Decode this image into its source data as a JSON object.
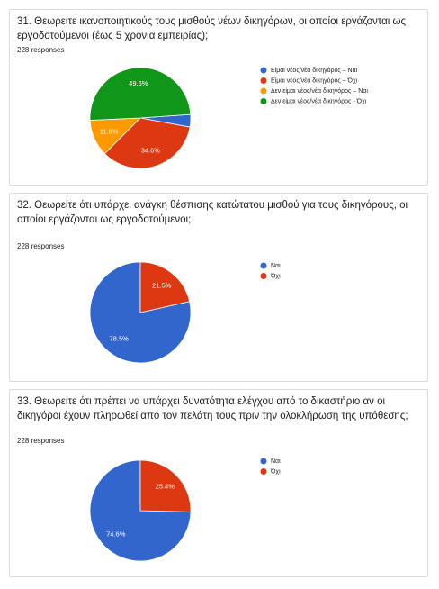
{
  "chart_data": [
    {
      "type": "pie",
      "title": "31. Θεωρείτε ικανοποιητικούς τους μισθούς νέων δικηγόρων, οι οποίοι εργάζονται ως εργοδοτούμενοι (έως 5 χρόνια εμπειρίας);",
      "subtitle": "228 responses",
      "categories": [
        "Είμαι νέος/νέα δικηγόρος – Ναι",
        "Είμαι νέος/νέα δικηγόρος – Όχι",
        "Δεν είμαι νέος/νέα δικηγόρος – Ναι",
        "Δεν είμαι νέος/νέα δικηγόρος - Όχι"
      ],
      "values": [
        4.0,
        34.6,
        11.8,
        49.6
      ],
      "value_labels": [
        null,
        "34.6%",
        "11.8%",
        "49.6%"
      ],
      "colors": [
        "#3366cc",
        "#dc3912",
        "#ff9900",
        "#109618"
      ]
    },
    {
      "type": "pie",
      "title": "32. Θεωρείτε ότι υπάρχει ανάγκη θέσπισης κατώτατου μισθού για τους δικηγόρους, οι οποίοι εργάζονται ως εργοδοτούμενοι;",
      "subtitle": "228 responses",
      "categories": [
        "Ναι",
        "Όχι"
      ],
      "values": [
        78.5,
        21.5
      ],
      "value_labels": [
        "78.5%",
        "21.5%"
      ],
      "colors": [
        "#3366cc",
        "#dc3912"
      ]
    },
    {
      "type": "pie",
      "title": "33. Θεωρείτε ότι πρέπει να υπάρχει δυνατότητα ελέγχου από το δικαστήριο αν οι δικηγόροι έχουν πληρωθεί από τον πελάτη τους πριν την ολοκλήρωση της υπόθεσης;",
      "subtitle": "228 responses",
      "categories": [
        "Ναι",
        "Όχι"
      ],
      "values": [
        74.6,
        25.4
      ],
      "value_labels": [
        "74.6%",
        "25.4%"
      ],
      "colors": [
        "#3366cc",
        "#dc3912"
      ]
    }
  ]
}
